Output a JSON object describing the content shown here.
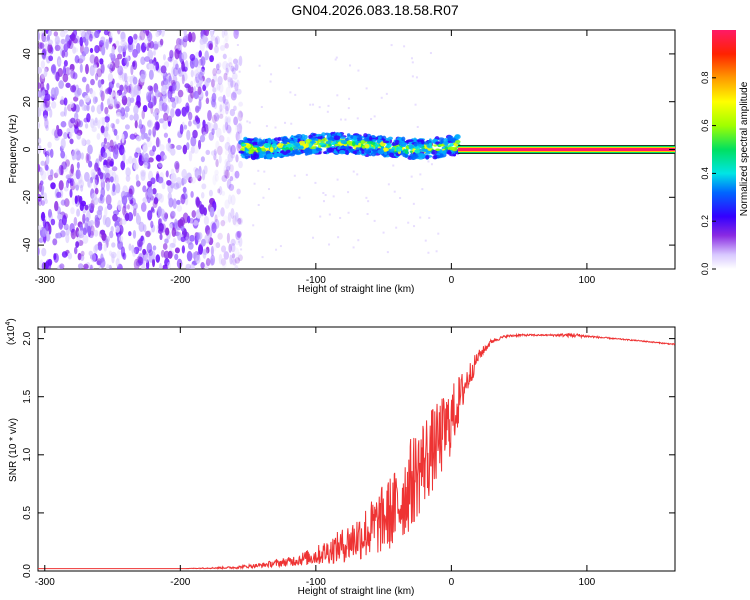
{
  "title": "GN04.2026.083.18.58.R07",
  "chart_data": [
    {
      "type": "heatmap",
      "title": "GN04.2026.083.18.58.R07",
      "xlabel": "Height of straight line (km)",
      "ylabel": "Frequency (Hz)",
      "xlim": [
        -305,
        165
      ],
      "ylim": [
        -50,
        50
      ],
      "x_ticks": [
        -300,
        -200,
        -100,
        0,
        100
      ],
      "x_tick_labels": [
        "-300",
        "-200",
        "-100",
        "0",
        "100"
      ],
      "y_ticks": [
        -40,
        -20,
        0,
        20,
        40
      ],
      "y_tick_labels": [
        "-40",
        "-20",
        "0",
        "20",
        "40"
      ],
      "colorbar": {
        "label": "Normalized spectral amplitude",
        "range": [
          0,
          1
        ],
        "ticks": [
          0.0,
          0.2,
          0.4,
          0.6,
          0.8
        ],
        "tick_labels": [
          "0.0",
          "0.2",
          "0.4",
          "0.6",
          "0.8"
        ]
      },
      "regions": [
        {
          "name": "noise",
          "x_range": [
            -305,
            -155
          ],
          "freq_range": [
            -50,
            50
          ],
          "amplitude": 0.15
        },
        {
          "name": "transition",
          "x_range": [
            -155,
            5
          ],
          "freq_range": [
            -5,
            8
          ],
          "amplitude": 0.35
        },
        {
          "name": "carrier",
          "x_range": [
            5,
            165
          ],
          "frequency": 0,
          "amplitude": 1.0
        }
      ]
    },
    {
      "type": "line",
      "xlabel": "Height of straight line (km)",
      "ylabel": "SNR (10 * v/v)",
      "y_multiplier": "(x10",
      "y_multiplier_exp": "4",
      "y_multiplier_close": ")",
      "xlim": [
        -305,
        165
      ],
      "ylim": [
        0,
        2.1
      ],
      "x_ticks": [
        -300,
        -200,
        -100,
        0,
        100
      ],
      "x_tick_labels": [
        "-300",
        "-200",
        "-100",
        "0",
        "100"
      ],
      "y_ticks": [
        0,
        0.5,
        1.0,
        1.5,
        2.0
      ],
      "y_tick_labels": [
        "0.0",
        "0.5",
        "1.0",
        "1.5",
        "2.0"
      ],
      "series": [
        {
          "name": "SNR",
          "color": "#ee3333",
          "x": [
            -305,
            -200,
            -160,
            -140,
            -120,
            -100,
            -80,
            -60,
            -40,
            -30,
            -20,
            -10,
            0,
            10,
            20,
            30,
            40,
            50,
            70,
            90,
            100,
            120,
            140,
            165
          ],
          "y": [
            0.02,
            0.02,
            0.03,
            0.05,
            0.08,
            0.13,
            0.22,
            0.35,
            0.55,
            0.75,
            0.95,
            1.1,
            1.3,
            1.6,
            1.85,
            1.98,
            2.02,
            2.03,
            2.03,
            2.03,
            2.02,
            2.0,
            1.98,
            1.95
          ],
          "noise_amplitude": [
            0.0,
            0.0,
            0.01,
            0.02,
            0.04,
            0.08,
            0.15,
            0.25,
            0.35,
            0.4,
            0.4,
            0.35,
            0.3,
            0.15,
            0.05,
            0.02,
            0.01,
            0.01,
            0.005,
            0.02,
            0.01,
            0.005,
            0.005,
            0.005
          ]
        }
      ]
    }
  ],
  "colors": {
    "noise": "#8a2be2",
    "line": "#ee3333",
    "carrier": "#ff1a66"
  }
}
